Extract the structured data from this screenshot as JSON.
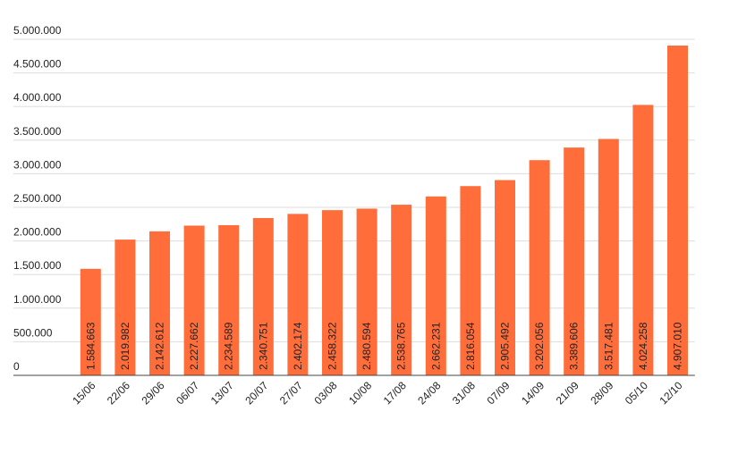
{
  "chart_data": {
    "type": "bar",
    "categories": [
      "15/06",
      "22/06",
      "29/06",
      "06/07",
      "13/07",
      "20/07",
      "27/07",
      "03/08",
      "10/08",
      "17/08",
      "24/08",
      "31/08",
      "07/09",
      "14/09",
      "21/09",
      "28/09",
      "05/10",
      "12/10"
    ],
    "values": [
      1584663,
      2019982,
      2142612,
      2227662,
      2234589,
      2340751,
      2402174,
      2458322,
      2480594,
      2538765,
      2662231,
      2816054,
      2905492,
      3202056,
      3389606,
      3517481,
      4024258,
      4907010
    ],
    "value_labels": [
      "1.584.663",
      "2.019.982",
      "2.142.612",
      "2.227.662",
      "2.234.589",
      "2.340.751",
      "2.402.174",
      "2.458.322",
      "2.480.594",
      "2.538.765",
      "2.662.231",
      "2.816.054",
      "2.905.492",
      "3.202.056",
      "3.389.606",
      "3.517.481",
      "4.024.258",
      "4.907.010"
    ],
    "color": "#ff6d3a",
    "ylim": [
      0,
      5000000
    ],
    "yticks": [
      0,
      {
        "value": 500000,
        "label": "500.000"
      },
      {
        "value": 1000000,
        "label": "1.000.000"
      },
      {
        "value": 1500000,
        "label": "1.500.000"
      },
      {
        "value": 2000000,
        "label": "2.000.000"
      },
      {
        "value": 2500000,
        "label": "2.500.000"
      },
      {
        "value": 3000000,
        "label": "3.000.000"
      },
      {
        "value": 3500000,
        "label": "3.500.000"
      },
      {
        "value": 4000000,
        "label": "4.000.000"
      },
      {
        "value": 4500000,
        "label": "4.500.000"
      },
      {
        "value": 5000000,
        "label": "5.000.000"
      }
    ],
    "grid": true
  }
}
